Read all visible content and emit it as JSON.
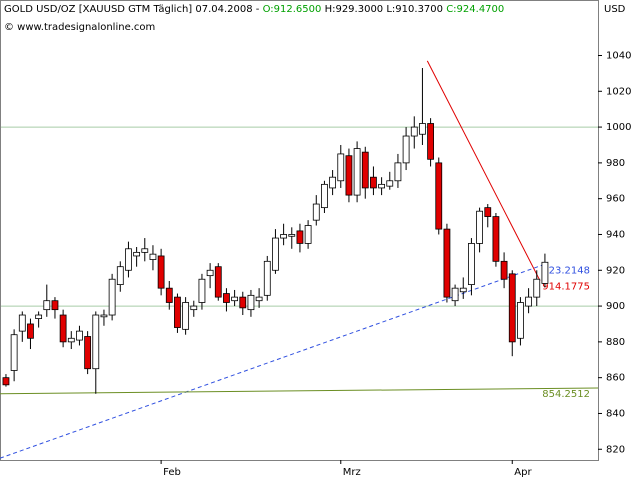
{
  "chart_data": {
    "type": "candlestick",
    "header": [
      "GOLD USD/OZ [XAUUSD GTM  Täglich] 07.04.2008 -",
      "O:912.6500",
      "H:929.3000",
      "L:910.3700",
      "C:924.4700"
    ],
    "watermark": "© www.tradesignalonline.com",
    "y_unit": "USD",
    "categories": [
      null,
      null,
      null,
      null,
      null,
      null,
      null,
      null,
      null,
      null,
      null,
      null,
      null,
      null,
      null,
      null,
      null,
      null,
      null,
      "Feb",
      null,
      null,
      null,
      null,
      null,
      null,
      null,
      null,
      null,
      null,
      null,
      null,
      null,
      null,
      null,
      null,
      null,
      null,
      null,
      null,
      null,
      "Mrz",
      null,
      null,
      null,
      null,
      null,
      null,
      null,
      null,
      null,
      null,
      null,
      null,
      null,
      null,
      null,
      null,
      null,
      null,
      null,
      null,
      "Apr",
      null,
      null,
      null,
      null
    ],
    "open": [
      860,
      864,
      886,
      890,
      893,
      898,
      903,
      895,
      880,
      881,
      883,
      865,
      894,
      895,
      912,
      920,
      928,
      930,
      926,
      928,
      910,
      905,
      887,
      898,
      902,
      917,
      922,
      907,
      903,
      905,
      898,
      903,
      906,
      920,
      938,
      939,
      942,
      935,
      948,
      955,
      966,
      970,
      984,
      962,
      986,
      972,
      966,
      967,
      970,
      980,
      995,
      996,
      1002,
      980,
      943,
      903,
      908,
      912,
      935,
      955,
      950,
      925,
      918,
      882,
      900,
      905,
      912.65
    ],
    "high": [
      862,
      887,
      897,
      893,
      897,
      912,
      905,
      898,
      886,
      889,
      886,
      897,
      898,
      918,
      925,
      936,
      933,
      938,
      934,
      932,
      914,
      907,
      905,
      903,
      918,
      924,
      924,
      910,
      909,
      908,
      909,
      910,
      928,
      943,
      946,
      944,
      946,
      948,
      962,
      970,
      976,
      990,
      988,
      992,
      989,
      978,
      972,
      975,
      985,
      1000,
      1006,
      1033,
      1005,
      983,
      946,
      912,
      916,
      938,
      955,
      957,
      952,
      930,
      920,
      905,
      910,
      920,
      929.3
    ],
    "low": [
      855,
      858,
      880,
      876,
      888,
      894,
      893,
      877,
      876,
      878,
      862,
      851,
      889,
      892,
      908,
      916,
      922,
      925,
      920,
      906,
      898,
      885,
      884,
      894,
      898,
      910,
      903,
      897,
      900,
      895,
      894,
      899,
      903,
      918,
      934,
      932,
      930,
      932,
      945,
      952,
      962,
      966,
      958,
      958,
      960,
      962,
      962,
      965,
      966,
      976,
      988,
      990,
      978,
      940,
      902,
      900,
      904,
      906,
      930,
      944,
      922,
      910,
      872,
      878,
      896,
      900,
      910.37
    ],
    "close": [
      856,
      884,
      895,
      882,
      895,
      903,
      898,
      880,
      882,
      886,
      865,
      895,
      895,
      915,
      922,
      932,
      930,
      932,
      929,
      910,
      902,
      888,
      902,
      900,
      915,
      920,
      905,
      902,
      905,
      899,
      906,
      905,
      925,
      938,
      940,
      940,
      935,
      945,
      957,
      968,
      972,
      985,
      962,
      988,
      966,
      966,
      968,
      970,
      980,
      995,
      1000,
      1002,
      982,
      943,
      905,
      910,
      910,
      935,
      953,
      950,
      925,
      915,
      880,
      902,
      905,
      915,
      924.47
    ],
    "up_color": "#ffffff",
    "down_color": "#e00000",
    "xlim": [
      -0.73,
      72.5
    ],
    "ylim": [
      814,
      1071
    ],
    "yticks": [
      820,
      840,
      860,
      880,
      900,
      920,
      940,
      960,
      980,
      1000,
      1020,
      1040
    ],
    "hlines": [
      900,
      1000
    ],
    "hline_color": "#a8cca8",
    "lines": [
      {
        "color": "#3050e0",
        "dash": true,
        "x": [
          -0.73,
          65.9
        ],
        "y": [
          815,
          923.2148
        ]
      },
      {
        "color": "#e00000",
        "dash": false,
        "x": [
          51.6,
          65.4
        ],
        "y": [
          1037,
          914.1775
        ]
      },
      {
        "color": "#6b8e23",
        "dash": false,
        "x": [
          -0.73,
          72.5
        ],
        "y": [
          851,
          854.2512
        ]
      }
    ]
  }
}
